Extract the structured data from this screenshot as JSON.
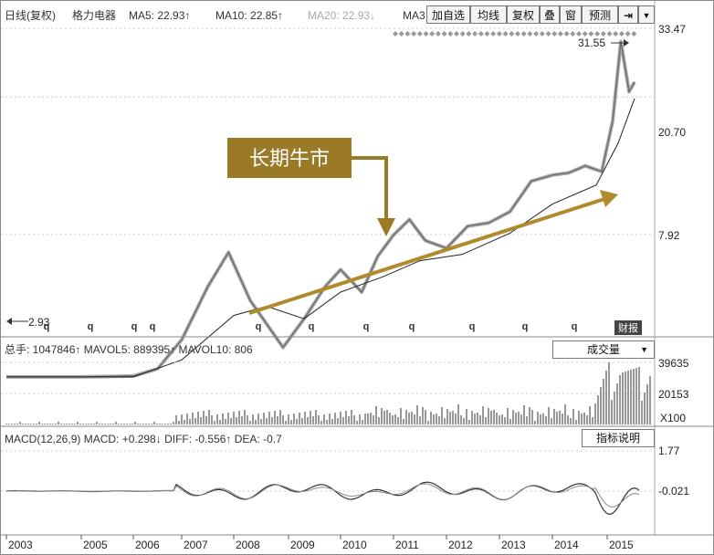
{
  "header": {
    "line_label": "日线(复权)",
    "stock_name": "格力电器",
    "ma5": "MA5: 22.93↑",
    "ma10": "MA10: 22.85↑",
    "ma20": "MA20: 22.93↓",
    "ma_cut": "MA3"
  },
  "toolbar": {
    "add_watch": "加自选",
    "ma_line": "均线",
    "adjust": "复权",
    "overlay": "叠",
    "window": "窗",
    "forecast": "预测",
    "pin_icon": "⇥",
    "menu_icon": "▼"
  },
  "annotation": {
    "callout": "长期牛市",
    "peak_label": "31.55",
    "low_label": "2.93"
  },
  "volume_panel": {
    "header": "总手: 1047846↑ MAVOL5: 889395↑ MAVOL10: 806",
    "dropdown": "成交量",
    "unit": "X100"
  },
  "macd_panel": {
    "header": "MACD(12,26,9) MACD: +0.298↓ DIFF: -0.556↑ DEA: -0.7",
    "button": "指标说明"
  },
  "financial_badge": "财报",
  "colors": {
    "price_line": "#666666",
    "ma_line": "#222222",
    "trend_arrow": "#b08a2c",
    "callout_bg": "#9a7a26"
  },
  "chart_data": {
    "type": "line",
    "title": "",
    "xlabel": "",
    "ylabel": "",
    "x_ticks": [
      "2003",
      "2005",
      "2006",
      "2007",
      "2008",
      "2009",
      "2010",
      "2011",
      "2012",
      "2013",
      "2014",
      "2015"
    ],
    "y_ticks_price": [
      "33.47",
      "20.70",
      "7.92"
    ],
    "y_ticks_volume": [
      "39635",
      "20153"
    ],
    "y_ticks_macd": [
      "1.77",
      "-0.021"
    ],
    "scale": "log",
    "grid": true,
    "series": [
      {
        "x": [
          2003.0,
          2004.0,
          2005.0,
          2006.0,
          2006.5,
          2007.0,
          2007.5,
          2007.9,
          2008.3,
          2008.9,
          2009.3,
          2009.7,
          2010.0,
          2010.4,
          2010.7,
          2011.0,
          2011.3,
          2011.6,
          2012.0,
          2012.4,
          2012.8,
          2013.2,
          2013.6,
          2014.0,
          2014.3,
          2014.6,
          2014.9,
          2015.1,
          2015.25,
          2015.4,
          2015.5
        ],
        "values": [
          2.93,
          2.93,
          2.93,
          2.95,
          3.1,
          3.8,
          5.5,
          7.0,
          5.0,
          3.6,
          4.4,
          5.5,
          6.2,
          5.3,
          6.8,
          7.9,
          8.8,
          7.6,
          7.2,
          8.4,
          8.6,
          9.3,
          11.5,
          12.0,
          12.2,
          12.8,
          12.3,
          17.5,
          30.5,
          21.5,
          23.0
        ]
      },
      {
        "x": [
          2003.0,
          2006.0,
          2007.0,
          2008.0,
          2008.6,
          2009.3,
          2010.0,
          2010.8,
          2011.5,
          2012.3,
          2013.2,
          2014.0,
          2014.8,
          2015.2,
          2015.5
        ],
        "values": [
          2.93,
          2.93,
          3.3,
          4.5,
          4.8,
          4.4,
          5.3,
          5.9,
          6.6,
          6.9,
          8.0,
          9.8,
          11.2,
          15.0,
          20.5
        ]
      }
    ]
  }
}
